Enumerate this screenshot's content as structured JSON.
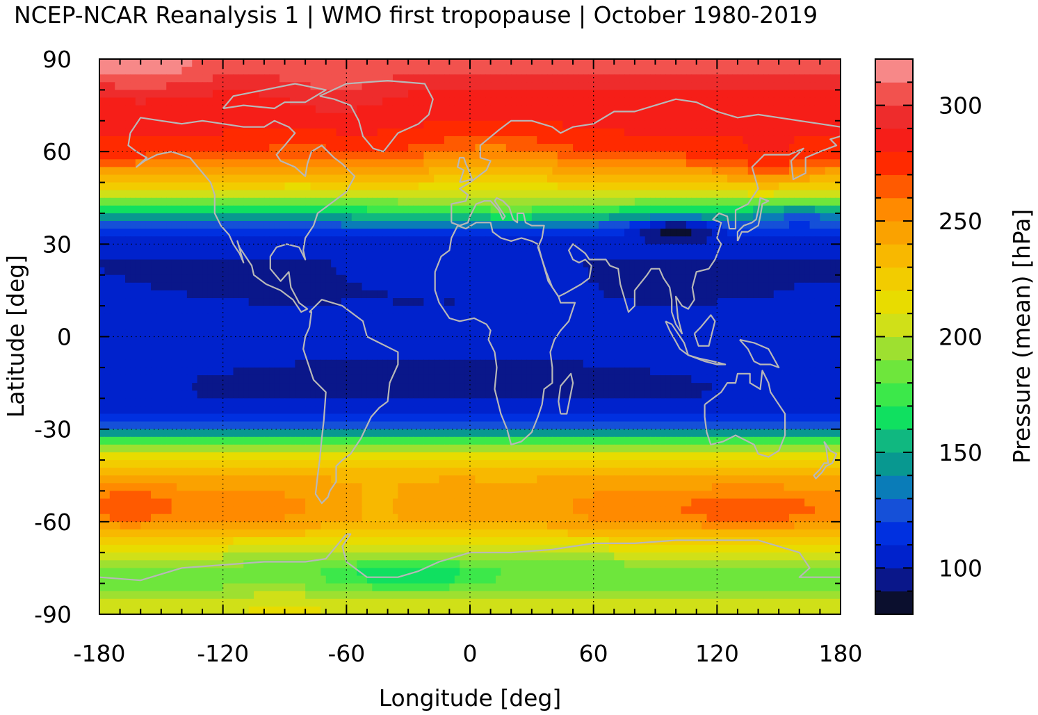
{
  "title": "NCEP-NCAR Reanalysis 1 | WMO first tropopause | October 1980-2019",
  "chart_data": {
    "type": "heatmap",
    "title": "NCEP-NCAR Reanalysis 1 | WMO first tropopause | October 1980-2019",
    "xlabel": "Longitude [deg]",
    "ylabel": "Latitude [deg]",
    "colorbar_label": "Pressure (mean) [hPa]",
    "xlim": [
      -180,
      180
    ],
    "ylim": [
      -90,
      90
    ],
    "x_ticks": [
      -180,
      -120,
      -60,
      0,
      60,
      120,
      180
    ],
    "x_tick_labels": [
      "-180",
      "-120",
      "-60",
      "0",
      "60",
      "120",
      "180"
    ],
    "y_ticks": [
      -90,
      -60,
      -30,
      0,
      30,
      60,
      90
    ],
    "y_tick_labels": [
      "-90",
      "-60",
      "-30",
      "0",
      "30",
      "60",
      "90"
    ],
    "colorbar_range": [
      80,
      320
    ],
    "colorbar_ticks": [
      100,
      150,
      200,
      250,
      300
    ],
    "colorbar_tick_labels": [
      "100",
      "150",
      "200",
      "250",
      "300"
    ],
    "colorbar_levels": [
      80,
      90,
      100,
      110,
      120,
      130,
      140,
      150,
      160,
      170,
      180,
      190,
      200,
      210,
      220,
      230,
      240,
      250,
      260,
      270,
      280,
      290,
      300,
      310,
      320
    ],
    "colorbar_colors": [
      "#0b0f2e",
      "#0a178a",
      "#0022cc",
      "#0030e0",
      "#1550d8",
      "#0a7cb8",
      "#089890",
      "#10b880",
      "#10e060",
      "#3ce84a",
      "#6ee63c",
      "#9ee030",
      "#d0e018",
      "#e8dc00",
      "#f2cc00",
      "#f8b800",
      "#faa200",
      "#ff8a00",
      "#ff5a00",
      "#ff2a00",
      "#f61e18",
      "#ee2c2c",
      "#f2524e",
      "#f78888",
      "#fcc8c8"
    ],
    "grid": true,
    "overlay": "coastlines",
    "latitude_profile": {
      "lat": [
        90,
        85,
        80,
        75,
        70,
        65,
        60,
        55,
        50,
        45,
        40,
        35,
        30,
        25,
        20,
        15,
        10,
        5,
        0,
        -5,
        -10,
        -15,
        -20,
        -25,
        -30,
        -35,
        -40,
        -45,
        -50,
        -55,
        -60,
        -65,
        -70,
        -75,
        -80,
        -85,
        -90
      ],
      "pressure_hPa": [
        305,
        300,
        290,
        285,
        282,
        280,
        275,
        255,
        230,
        200,
        160,
        120,
        105,
        100,
        100,
        100,
        100,
        100,
        100,
        100,
        100,
        100,
        100,
        105,
        130,
        190,
        225,
        240,
        250,
        255,
        250,
        225,
        205,
        185,
        185,
        200,
        210
      ]
    }
  }
}
